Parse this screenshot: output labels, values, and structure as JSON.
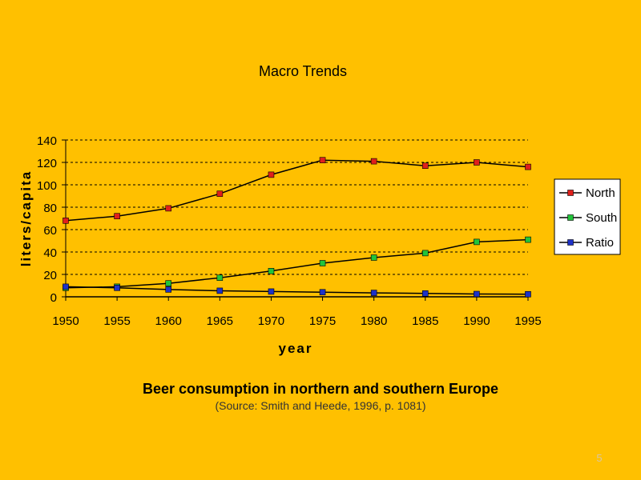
{
  "slide": {
    "caption": "Beer consumption in northern and southern Europe",
    "source": "(Source: Smith and Heede, 1996, p. 1081)",
    "page_number": "5",
    "background_color": "#FFC000"
  },
  "chart_data": {
    "type": "line",
    "title": "Macro Trends",
    "xlabel": "year",
    "ylabel": "liters/capita",
    "categories": [
      "1950",
      "1955",
      "1960",
      "1965",
      "1970",
      "1975",
      "1980",
      "1985",
      "1990",
      "1995"
    ],
    "ylim": [
      0,
      140
    ],
    "yticks": [
      0,
      20,
      40,
      60,
      80,
      100,
      120,
      140
    ],
    "grid": "horizontal dashed",
    "legend_position": "right",
    "series": [
      {
        "name": "North",
        "color": "#E0201B",
        "values": [
          68,
          72,
          79,
          92,
          109,
          122,
          121,
          117,
          120,
          116
        ]
      },
      {
        "name": "South",
        "color": "#22C43A",
        "values": [
          8,
          9,
          12,
          17,
          23,
          30,
          35,
          39,
          49,
          51
        ]
      },
      {
        "name": "Ratio",
        "color": "#1E32C8",
        "values": [
          9,
          8,
          6.5,
          5.4,
          4.7,
          4.1,
          3.5,
          3.0,
          2.5,
          2.3
        ]
      }
    ]
  }
}
